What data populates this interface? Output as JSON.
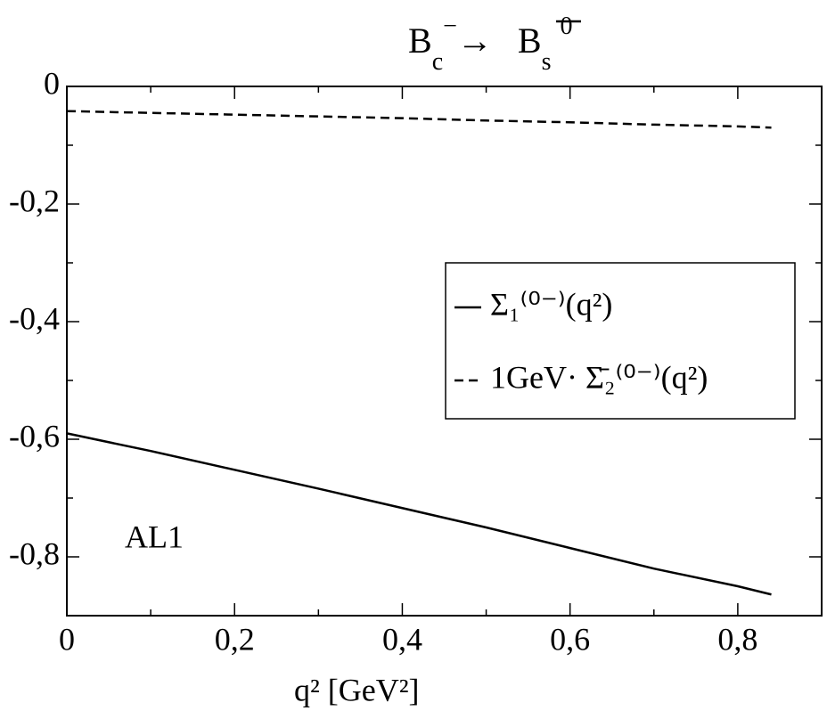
{
  "chart_data": {
    "type": "line",
    "title": {
      "from": "B",
      "from_sub": "c",
      "from_sup": "−",
      "arrow": "→",
      "to": "B",
      "to_sub": "s",
      "to_sup": "0"
    },
    "x_label": "q² [GeV²]",
    "annotation": "AL1",
    "x": [
      0,
      0.1,
      0.2,
      0.3,
      0.4,
      0.5,
      0.6,
      0.7,
      0.8,
      0.84
    ],
    "series": [
      {
        "name": "Σ₁⁽⁰⁻⁾(q²)",
        "color": "#000000",
        "dash": "solid",
        "values": [
          -0.59,
          -0.62,
          -0.652,
          -0.684,
          -0.717,
          -0.75,
          -0.785,
          -0.82,
          -0.85,
          -0.864
        ]
      },
      {
        "name": "1GeV· Σ̄₂⁽⁰⁻⁾(q²)",
        "color": "#000000",
        "dash": "dashed",
        "values": [
          -0.042,
          -0.045,
          -0.048,
          -0.051,
          -0.054,
          -0.058,
          -0.061,
          -0.065,
          -0.068,
          -0.07
        ]
      }
    ],
    "xlim": [
      0,
      0.9
    ],
    "ylim": [
      -0.9,
      0
    ],
    "xticks": [
      0,
      {
        "value": 0.2,
        "label": "0,2"
      },
      {
        "value": 0.4,
        "label": "0,4"
      },
      {
        "value": 0.6,
        "label": "0,6"
      },
      {
        "value": 0.8,
        "label": "0,8"
      }
    ],
    "yticks": [
      0,
      {
        "value": -0.2,
        "label": "-0,2"
      },
      {
        "value": -0.4,
        "label": "-0,4"
      },
      {
        "value": -0.6,
        "label": "-0,6"
      },
      {
        "value": -0.8,
        "label": "-0,8"
      }
    ],
    "grid": false,
    "legend": "right"
  }
}
